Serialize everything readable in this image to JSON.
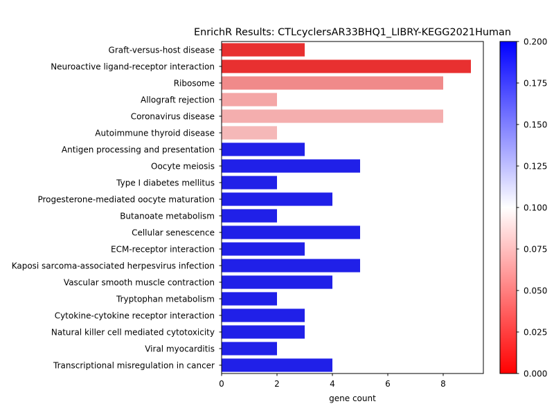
{
  "chart_data": {
    "type": "bar",
    "orientation": "horizontal",
    "title": "EnrichR Results: CTLcyclersAR33BHQ1_LIBRY-KEGG2021Human",
    "xlabel": "gene count",
    "ylabel": "",
    "xlim": [
      0,
      9.45
    ],
    "xticks": [
      "0",
      "2",
      "4",
      "6",
      "8"
    ],
    "grid": false,
    "categories": [
      "Graft-versus-host disease",
      "Neuroactive ligand-receptor interaction",
      "Ribosome",
      "Allograft rejection",
      "Coronavirus disease",
      "Autoimmune thyroid disease",
      "Antigen processing and presentation",
      "Oocyte meiosis",
      "Type I diabetes mellitus",
      "Progesterone-mediated oocyte maturation",
      "Butanoate metabolism",
      "Cellular senescence",
      "ECM-receptor interaction",
      "Kaposi sarcoma-associated herpesvirus infection",
      "Vascular smooth muscle contraction",
      "Tryptophan metabolism",
      "Cytokine-cytokine receptor interaction",
      "Natural killer cell mediated cytotoxicity",
      "Viral myocarditis",
      "Transcriptional misregulation in cancer"
    ],
    "values": [
      3,
      9,
      8,
      2,
      8,
      2,
      3,
      5,
      2,
      4,
      2,
      5,
      3,
      5,
      4,
      2,
      3,
      3,
      2,
      4
    ],
    "bar_colors": [
      "#e83030",
      "#e83030",
      "#f08a8a",
      "#f4a6a6",
      "#f4aeae",
      "#f5b8b8",
      "#2020e8",
      "#2020e8",
      "#2020e8",
      "#2020e8",
      "#2020e8",
      "#2020e8",
      "#2020e8",
      "#2020e8",
      "#2020e8",
      "#2020e8",
      "#2020e8",
      "#2020e8",
      "#2020e8",
      "#2020e8"
    ],
    "colorbar": {
      "colormap": "bwr_r",
      "range": [
        0,
        0.2
      ],
      "ticks": [
        "0.000",
        "0.025",
        "0.050",
        "0.075",
        "0.100",
        "0.125",
        "0.150",
        "0.175",
        "0.200"
      ]
    }
  }
}
